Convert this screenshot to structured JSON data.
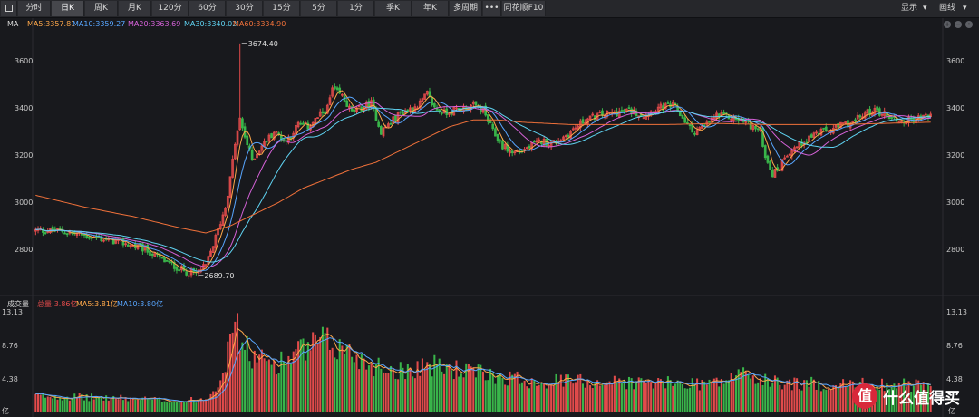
{
  "toolbar": {
    "tabs": [
      "分时",
      "日K",
      "周K",
      "月K",
      "120分",
      "60分",
      "30分",
      "15分",
      "5分",
      "1分",
      "季K",
      "年K",
      "多周期",
      "•••",
      "同花顺F10"
    ],
    "active_tab": "日K",
    "display_label": "显示",
    "draw_label": "画线"
  },
  "legend_main": {
    "title": "MA",
    "ma5": "MA5:3357.81",
    "ma10": "MA10:3359.27",
    "ma20": "MA20:3363.69",
    "ma30": "MA30:3340.02",
    "ma60": "MA60:3334.90"
  },
  "legend_vol": {
    "title": "成交量",
    "total": "总量:3.86亿",
    "ma5": "MA5:3.81亿",
    "ma10": "MA10:3.80亿"
  },
  "annotations": {
    "high": "3674.40",
    "low": "2689.70"
  },
  "vol_unit": "亿",
  "watermark": {
    "badge": "值",
    "text": "什么值得买"
  },
  "colors": {
    "up": "#e24b4b",
    "down": "#39b54a",
    "ma5": "#ffa84a",
    "ma10": "#58a6ff",
    "ma20": "#d562d8",
    "ma30": "#5fd3f2",
    "ma60": "#f0713a"
  },
  "chart_data": [
    {
      "type": "candlestick",
      "title": "",
      "y_ticks": [
        2800,
        3000,
        3200,
        3400,
        3600
      ],
      "ylim": [
        2620,
        3720
      ],
      "grid": false,
      "high_marker": 3674.4,
      "low_marker": 2689.7,
      "price_keypoints": [
        [
          0,
          2880
        ],
        [
          10,
          2880
        ],
        [
          22,
          2855
        ],
        [
          35,
          2830
        ],
        [
          45,
          2800
        ],
        [
          55,
          2740
        ],
        [
          62,
          2705
        ],
        [
          66,
          2700
        ],
        [
          70,
          2730
        ],
        [
          74,
          2850
        ],
        [
          78,
          2980
        ],
        [
          80,
          3100
        ],
        [
          82,
          3250
        ],
        [
          84,
          3350
        ],
        [
          86,
          3280
        ],
        [
          89,
          3180
        ],
        [
          93,
          3240
        ],
        [
          98,
          3300
        ],
        [
          103,
          3260
        ],
        [
          108,
          3330
        ],
        [
          112,
          3320
        ],
        [
          116,
          3360
        ],
        [
          120,
          3400
        ],
        [
          122,
          3480
        ],
        [
          126,
          3450
        ],
        [
          130,
          3380
        ],
        [
          134,
          3400
        ],
        [
          138,
          3420
        ],
        [
          142,
          3300
        ],
        [
          146,
          3340
        ],
        [
          150,
          3380
        ],
        [
          155,
          3400
        ],
        [
          158,
          3420
        ],
        [
          161,
          3460
        ],
        [
          164,
          3400
        ],
        [
          168,
          3380
        ],
        [
          172,
          3390
        ],
        [
          176,
          3400
        ],
        [
          180,
          3410
        ],
        [
          184,
          3390
        ],
        [
          188,
          3300
        ],
        [
          192,
          3240
        ],
        [
          196,
          3210
        ],
        [
          200,
          3220
        ],
        [
          204,
          3240
        ],
        [
          208,
          3260
        ],
        [
          212,
          3250
        ],
        [
          216,
          3270
        ],
        [
          220,
          3300
        ],
        [
          226,
          3350
        ],
        [
          232,
          3370
        ],
        [
          238,
          3380
        ],
        [
          244,
          3390
        ],
        [
          250,
          3370
        ],
        [
          256,
          3400
        ],
        [
          262,
          3410
        ],
        [
          266,
          3360
        ],
        [
          270,
          3300
        ],
        [
          275,
          3320
        ],
        [
          280,
          3370
        ],
        [
          286,
          3360
        ],
        [
          292,
          3340
        ],
        [
          298,
          3300
        ],
        [
          300,
          3200
        ],
        [
          303,
          3120
        ],
        [
          306,
          3150
        ],
        [
          308,
          3200
        ],
        [
          312,
          3230
        ],
        [
          316,
          3260
        ],
        [
          320,
          3290
        ],
        [
          324,
          3300
        ],
        [
          328,
          3310
        ],
        [
          332,
          3330
        ],
        [
          336,
          3340
        ],
        [
          340,
          3370
        ],
        [
          344,
          3390
        ],
        [
          348,
          3380
        ],
        [
          352,
          3360
        ],
        [
          356,
          3340
        ],
        [
          360,
          3350
        ],
        [
          364,
          3360
        ],
        [
          368,
          3370
        ]
      ],
      "ma60_keypoints": [
        [
          0,
          3030
        ],
        [
          20,
          2980
        ],
        [
          40,
          2940
        ],
        [
          60,
          2890
        ],
        [
          70,
          2870
        ],
        [
          80,
          2900
        ],
        [
          90,
          2950
        ],
        [
          100,
          3000
        ],
        [
          110,
          3060
        ],
        [
          120,
          3100
        ],
        [
          130,
          3140
        ],
        [
          140,
          3170
        ],
        [
          150,
          3220
        ],
        [
          160,
          3270
        ],
        [
          170,
          3320
        ],
        [
          180,
          3350
        ],
        [
          190,
          3350
        ],
        [
          200,
          3340
        ],
        [
          220,
          3330
        ],
        [
          240,
          3330
        ],
        [
          260,
          3330
        ],
        [
          280,
          3335
        ],
        [
          300,
          3330
        ],
        [
          330,
          3330
        ],
        [
          368,
          3340
        ]
      ],
      "series": [
        {
          "name": "MA5",
          "last": 3357.81
        },
        {
          "name": "MA10",
          "last": 3359.27
        },
        {
          "name": "MA20",
          "last": 3363.69
        },
        {
          "name": "MA30",
          "last": 3340.02
        },
        {
          "name": "MA60",
          "last": 3334.9
        }
      ]
    },
    {
      "type": "bar",
      "title": "成交量",
      "y_ticks": [
        4.38,
        8.76,
        13.13
      ],
      "ylim": [
        0,
        13.13
      ],
      "vol_keypoints": [
        [
          0,
          2.2
        ],
        [
          20,
          2.0
        ],
        [
          40,
          1.8
        ],
        [
          60,
          1.5
        ],
        [
          70,
          1.8
        ],
        [
          75,
          4.0
        ],
        [
          80,
          8.5
        ],
        [
          81,
          13.1
        ],
        [
          84,
          9.8
        ],
        [
          88,
          7.5
        ],
        [
          92,
          6.8
        ],
        [
          100,
          6.5
        ],
        [
          108,
          7.8
        ],
        [
          114,
          8.6
        ],
        [
          118,
          9.2
        ],
        [
          124,
          8.5
        ],
        [
          130,
          7.8
        ],
        [
          136,
          6.5
        ],
        [
          142,
          6.0
        ],
        [
          150,
          5.5
        ],
        [
          160,
          6.2
        ],
        [
          170,
          5.8
        ],
        [
          180,
          5.2
        ],
        [
          190,
          4.8
        ],
        [
          200,
          4.3
        ],
        [
          210,
          4.0
        ],
        [
          220,
          4.2
        ],
        [
          230,
          4.0
        ],
        [
          240,
          4.0
        ],
        [
          250,
          3.9
        ],
        [
          260,
          3.8
        ],
        [
          280,
          3.9
        ],
        [
          288,
          4.6
        ],
        [
          292,
          5.7
        ],
        [
          296,
          4.2
        ],
        [
          310,
          3.8
        ],
        [
          330,
          3.6
        ],
        [
          350,
          3.7
        ],
        [
          368,
          3.5
        ]
      ]
    }
  ]
}
